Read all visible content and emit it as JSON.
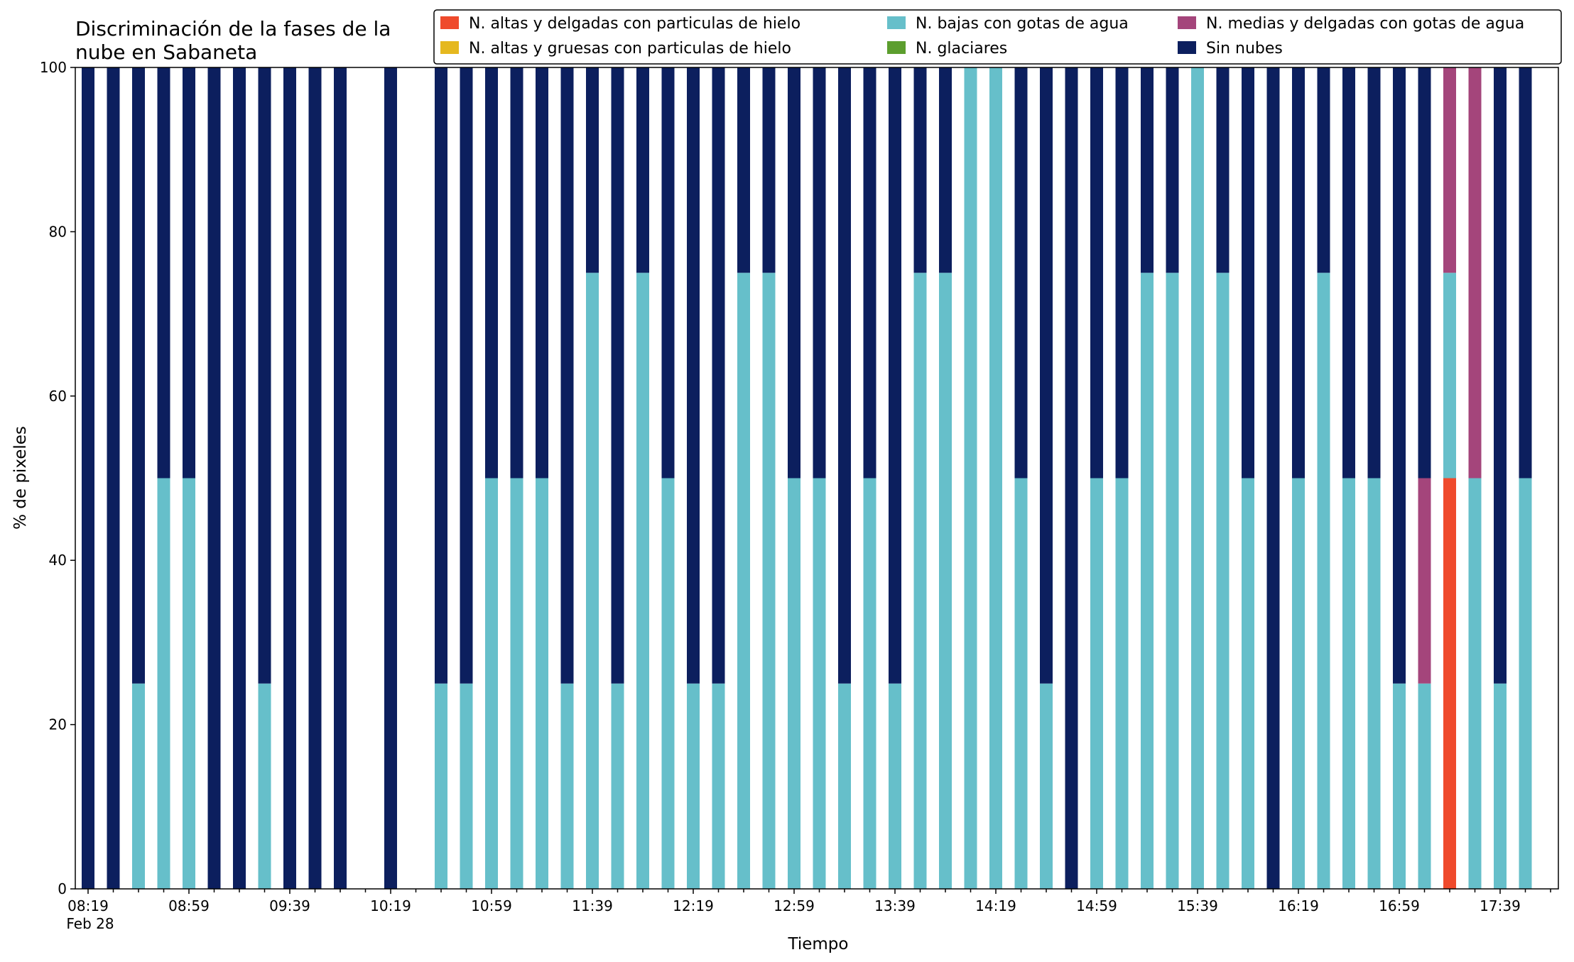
{
  "chart_data": {
    "type": "bar",
    "stacked": true,
    "title_lines": [
      "Discriminación de la fases de la",
      "nube en Sabaneta"
    ],
    "xlabel": "Tiempo",
    "ylabel": "% de pixeles",
    "ylim": [
      0,
      100
    ],
    "yticks": [
      0,
      20,
      40,
      60,
      80,
      100
    ],
    "grid": false,
    "legend_position": "top-right",
    "date_label": "Feb 28",
    "start_time": "08:19",
    "interval_minutes": 10,
    "xtick_labels": [
      "08:19",
      "08:59",
      "09:39",
      "10:19",
      "10:59",
      "11:39",
      "12:19",
      "12:59",
      "13:39",
      "14:19",
      "14:59",
      "15:39",
      "16:19",
      "16:59",
      "17:39"
    ],
    "categories": [
      "08:19",
      "08:29",
      "08:39",
      "08:49",
      "08:59",
      "09:09",
      "09:19",
      "09:29",
      "09:39",
      "09:49",
      "09:59",
      "10:09",
      "10:19",
      "10:29",
      "10:39",
      "10:49",
      "10:59",
      "11:09",
      "11:19",
      "11:29",
      "11:39",
      "11:49",
      "11:59",
      "12:09",
      "12:19",
      "12:29",
      "12:39",
      "12:49",
      "12:59",
      "13:09",
      "13:19",
      "13:29",
      "13:39",
      "13:49",
      "13:59",
      "14:09",
      "14:19",
      "14:29",
      "14:39",
      "14:49",
      "14:59",
      "15:09",
      "15:19",
      "15:29",
      "15:39",
      "15:49",
      "15:59",
      "16:09",
      "16:19",
      "16:29",
      "16:39",
      "16:49",
      "16:59",
      "17:09",
      "17:19",
      "17:29",
      "17:39",
      "17:49"
    ],
    "series": [
      {
        "name": "N. altas y delgadas con particulas de hielo",
        "color": "#ef4a2c",
        "values": [
          0,
          0,
          0,
          0,
          0,
          0,
          0,
          0,
          0,
          0,
          0,
          null,
          0,
          null,
          0,
          0,
          0,
          0,
          0,
          0,
          0,
          0,
          0,
          0,
          0,
          0,
          0,
          0,
          0,
          0,
          0,
          0,
          0,
          0,
          0,
          0,
          0,
          0,
          0,
          0,
          0,
          0,
          0,
          0,
          0,
          0,
          0,
          0,
          0,
          0,
          0,
          0,
          0,
          0,
          50,
          0,
          0,
          0
        ]
      },
      {
        "name": "N. altas y gruesas con particulas de hielo",
        "color": "#e5b81f",
        "values": [
          0,
          0,
          0,
          0,
          0,
          0,
          0,
          0,
          0,
          0,
          0,
          null,
          0,
          null,
          0,
          0,
          0,
          0,
          0,
          0,
          0,
          0,
          0,
          0,
          0,
          0,
          0,
          0,
          0,
          0,
          0,
          0,
          0,
          0,
          0,
          0,
          0,
          0,
          0,
          0,
          0,
          0,
          0,
          0,
          0,
          0,
          0,
          0,
          0,
          0,
          0,
          0,
          0,
          0,
          0,
          0,
          0,
          0
        ]
      },
      {
        "name": "N. bajas con gotas de agua",
        "color": "#66bfca",
        "values": [
          0,
          0,
          25,
          50,
          50,
          0,
          0,
          25,
          0,
          0,
          0,
          null,
          0,
          null,
          25,
          25,
          50,
          50,
          50,
          25,
          75,
          25,
          75,
          50,
          25,
          25,
          75,
          75,
          50,
          50,
          25,
          50,
          25,
          75,
          75,
          100,
          100,
          50,
          25,
          0,
          50,
          50,
          75,
          75,
          100,
          75,
          50,
          0,
          50,
          75,
          50,
          50,
          25,
          25,
          25,
          50,
          25,
          50
        ]
      },
      {
        "name": "N. glaciares",
        "color": "#5c9e2e",
        "values": [
          0,
          0,
          0,
          0,
          0,
          0,
          0,
          0,
          0,
          0,
          0,
          null,
          0,
          null,
          0,
          0,
          0,
          0,
          0,
          0,
          0,
          0,
          0,
          0,
          0,
          0,
          0,
          0,
          0,
          0,
          0,
          0,
          0,
          0,
          0,
          0,
          0,
          0,
          0,
          0,
          0,
          0,
          0,
          0,
          0,
          0,
          0,
          0,
          0,
          0,
          0,
          0,
          0,
          0,
          0,
          0,
          0,
          0
        ]
      },
      {
        "name": "N. medias y delgadas con gotas de agua",
        "color": "#a4457b",
        "values": [
          0,
          0,
          0,
          0,
          0,
          0,
          0,
          0,
          0,
          0,
          0,
          null,
          0,
          null,
          0,
          0,
          0,
          0,
          0,
          0,
          0,
          0,
          0,
          0,
          0,
          0,
          0,
          0,
          0,
          0,
          0,
          0,
          0,
          0,
          0,
          0,
          0,
          0,
          0,
          0,
          0,
          0,
          0,
          0,
          0,
          0,
          0,
          0,
          0,
          0,
          0,
          0,
          0,
          25,
          25,
          50,
          0,
          0
        ]
      },
      {
        "name": "Sin nubes",
        "color": "#0c1f5e",
        "values": [
          100,
          100,
          75,
          50,
          50,
          100,
          100,
          75,
          100,
          100,
          100,
          null,
          100,
          null,
          75,
          75,
          50,
          50,
          50,
          75,
          25,
          75,
          25,
          50,
          75,
          75,
          25,
          25,
          50,
          50,
          75,
          50,
          75,
          25,
          25,
          0,
          0,
          50,
          75,
          100,
          50,
          50,
          25,
          25,
          0,
          25,
          50,
          100,
          50,
          25,
          50,
          50,
          75,
          50,
          0,
          0,
          75,
          50
        ]
      }
    ]
  }
}
